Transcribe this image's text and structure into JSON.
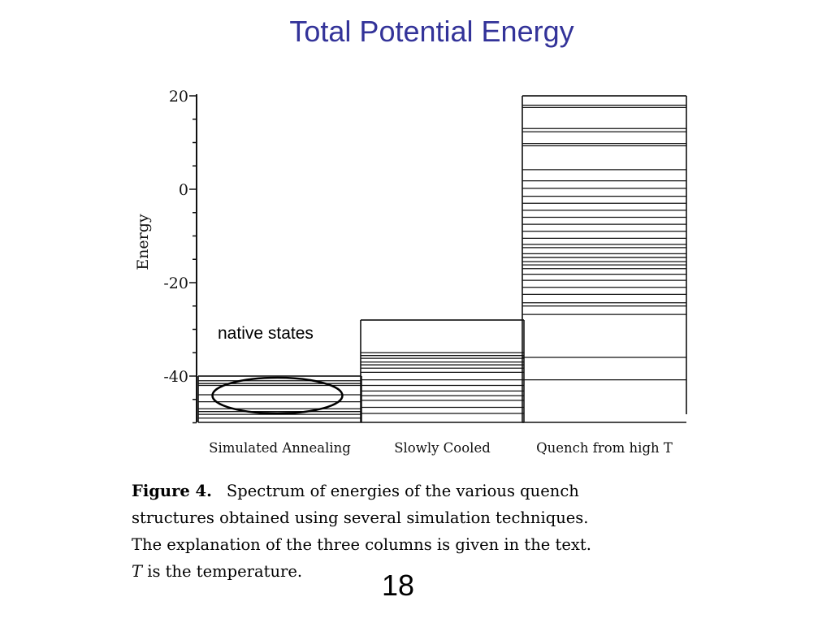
{
  "slide": {
    "title": "Total Potential Energy",
    "page_number": "18",
    "callout": "native states"
  },
  "caption": {
    "figure_label": "Figure 4.",
    "line1": "Spectrum of energies of the various quench",
    "line2": "structures obtained using several simulation techniques.",
    "line3": "The explanation of the three columns is given in the text.",
    "line4_var": "T",
    "line4_rest": " is the temperature."
  },
  "chart_data": {
    "type": "spectrum",
    "title": "",
    "ylabel": "Energy",
    "ylim": [
      -50,
      20
    ],
    "yticks": [
      20,
      0,
      -20,
      -40
    ],
    "grid": false,
    "columns": [
      {
        "label": "Simulated Annealing",
        "top": -40.0,
        "levels": [
          -40.0,
          -41.0,
          -41.6,
          -42.0,
          -44.0,
          -45.5,
          -47.0,
          -47.6,
          -48.2,
          -49.0
        ]
      },
      {
        "label": "Slowly Cooled",
        "top": -28.0,
        "levels": [
          -28.0,
          -35.0,
          -35.6,
          -36.2,
          -37.0,
          -37.6,
          -38.3,
          -39.2,
          -40.8,
          -42.0,
          -43.2,
          -44.2,
          -45.2,
          -46.7,
          -48.0
        ]
      },
      {
        "label": "Quench from high T",
        "top": 20.0,
        "levels": [
          20.0,
          18.0,
          17.5,
          13.0,
          12.3,
          9.8,
          9.3,
          4.2,
          1.8,
          0.2,
          -1.5,
          -3.0,
          -4.5,
          -6.0,
          -7.5,
          -9.0,
          -10.5,
          -11.8,
          -12.5,
          -13.8,
          -14.6,
          -15.5,
          -16.2,
          -17.0,
          -18.2,
          -19.5,
          -21.0,
          -22.5,
          -24.3,
          -25.0,
          -26.8,
          -36.0,
          -40.8
        ]
      }
    ],
    "annotation": {
      "shape": "ellipse",
      "column": 0,
      "energy_center": -44.0,
      "label": "native states"
    }
  }
}
